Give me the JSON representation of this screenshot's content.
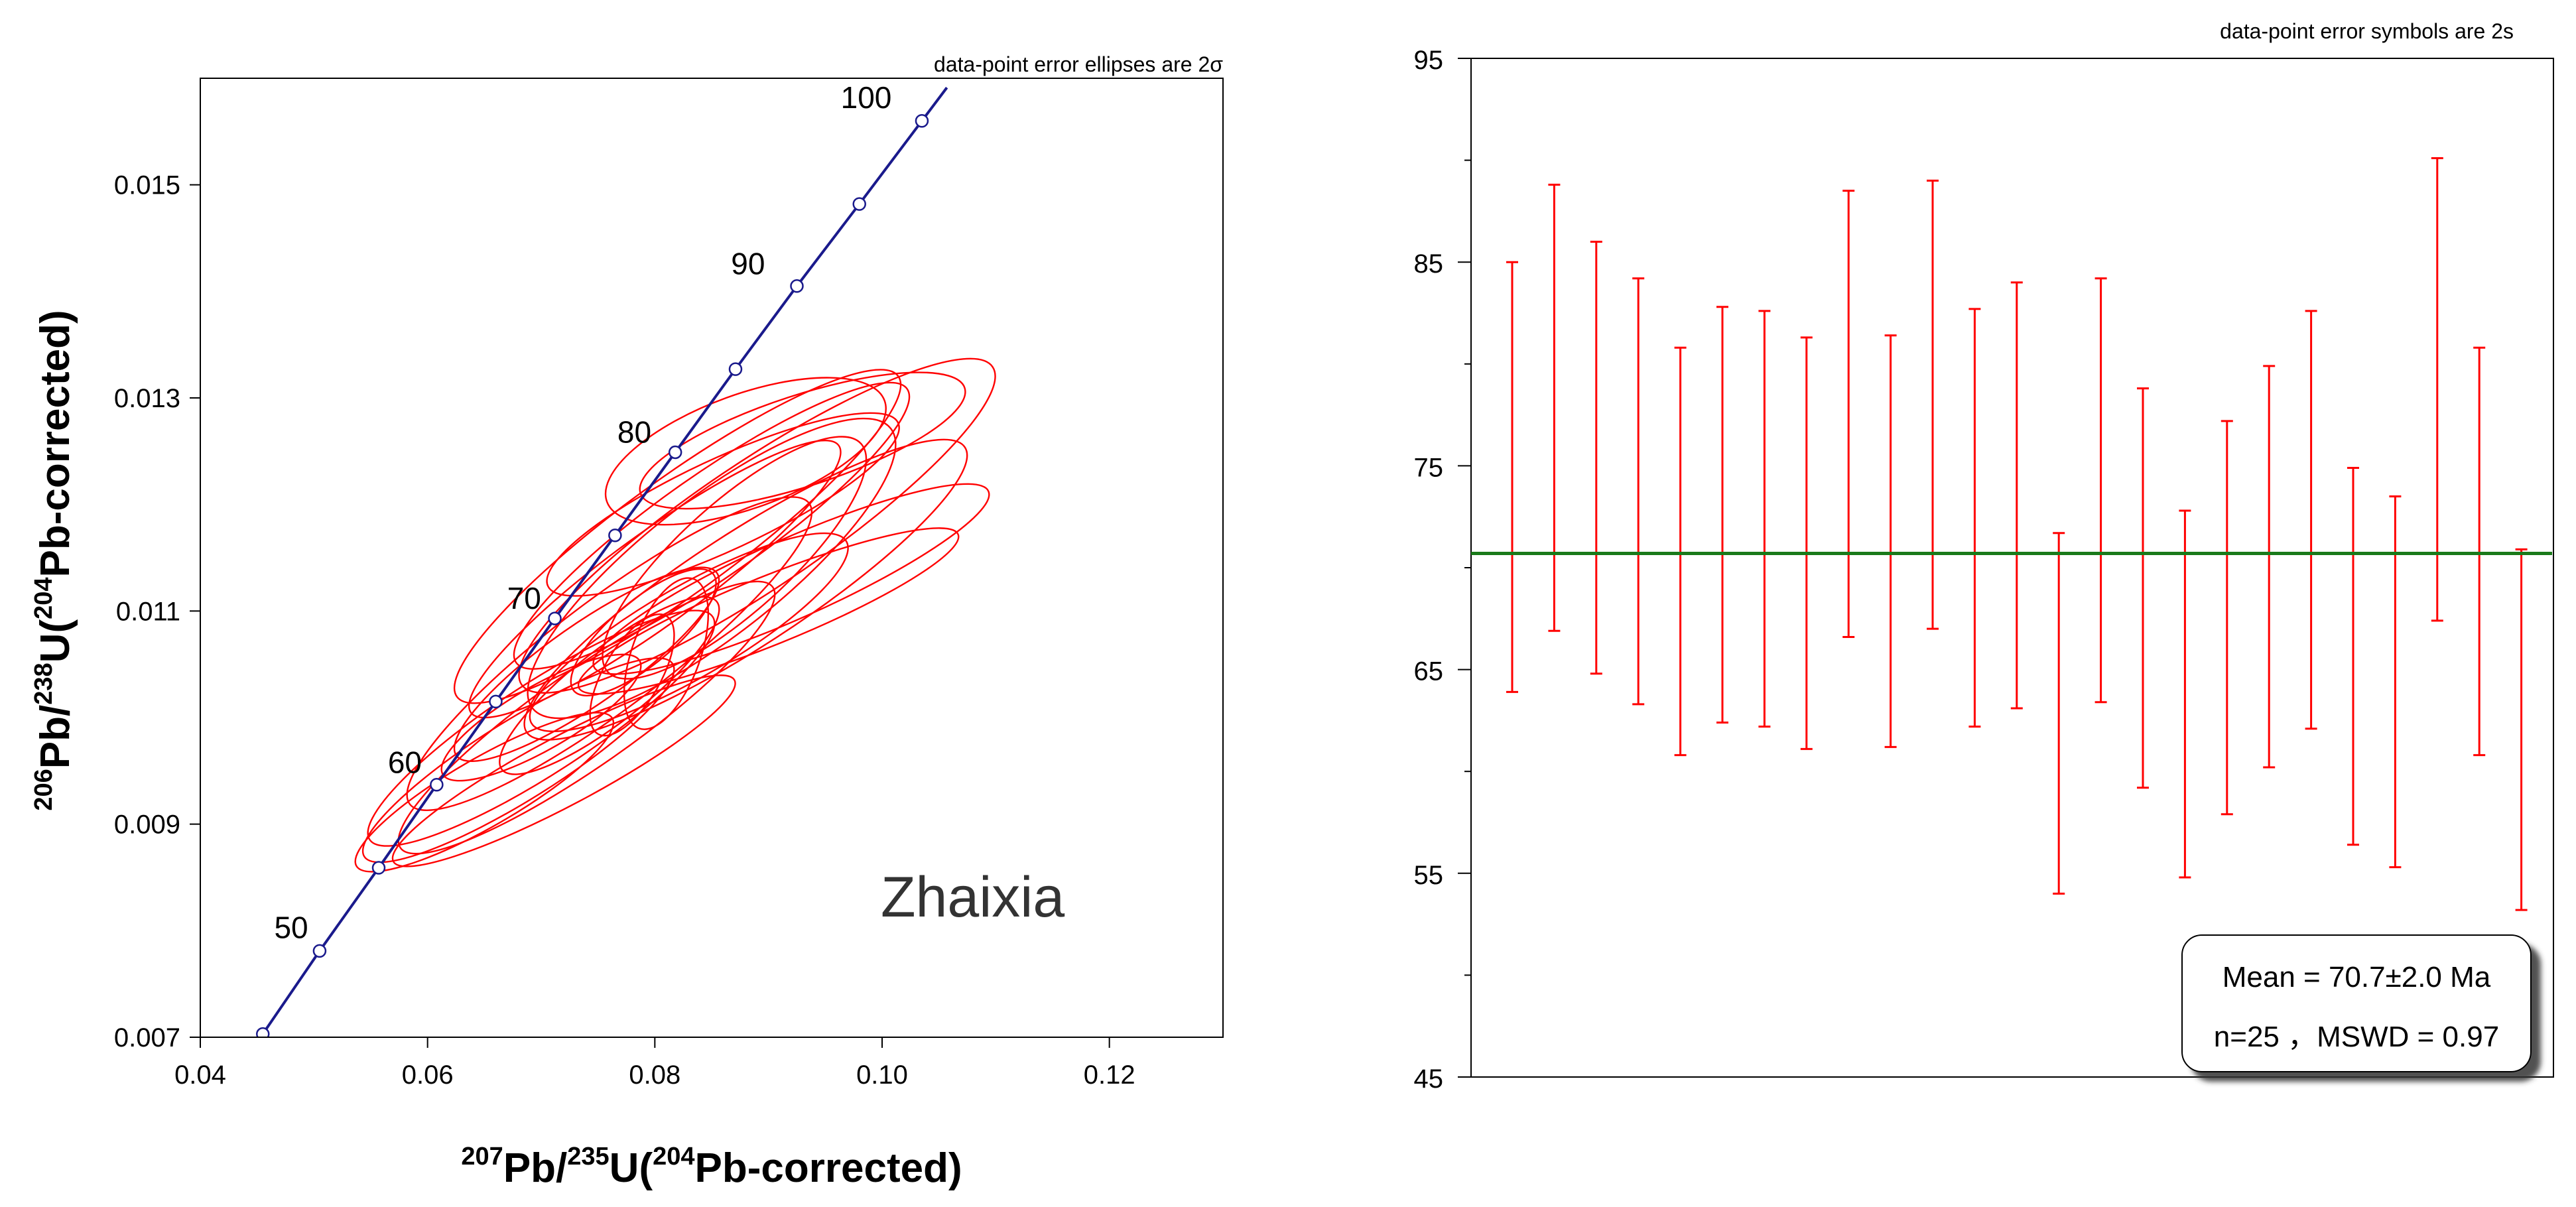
{
  "chart_data": [
    {
      "type": "scatter",
      "subtype": "concordia-error-ellipses",
      "note": "data-point error ellipses are 2σ",
      "xlabel": {
        "sup1": "207",
        "t1": "Pb/",
        "sup2": "235",
        "t2": "U(",
        "sup3": "204",
        "t3": "Pb-corrected)"
      },
      "ylabel": {
        "sup1": "206",
        "t1": "Pb/",
        "sup2": "238",
        "t2": "U(",
        "sup3": "204",
        "t3": "Pb-corrected)"
      },
      "xlim": [
        0.04,
        0.13
      ],
      "ylim": [
        0.007,
        0.016
      ],
      "xticks": [
        0.04,
        0.06,
        0.08,
        0.1,
        0.12
      ],
      "xtick_labels": [
        "0.04",
        "0.06",
        "0.08",
        "0.10",
        "0.12"
      ],
      "yticks": [
        0.007,
        0.009,
        0.011,
        0.013,
        0.015
      ],
      "ytick_labels": [
        "0.007",
        "0.009",
        "0.011",
        "0.013",
        "0.015"
      ],
      "sample_label": "Zhaixia",
      "concordia": {
        "color": "#1a1a8c",
        "ages": [
          45,
          50,
          55,
          60,
          65,
          70,
          75,
          80,
          85,
          90,
          95,
          100
        ],
        "x": [
          0.0455,
          0.0505,
          0.0557,
          0.0608,
          0.066,
          0.0712,
          0.0765,
          0.0818,
          0.0871,
          0.0925,
          0.098,
          0.1035
        ],
        "y": [
          0.00703,
          0.00781,
          0.00859,
          0.00937,
          0.01015,
          0.01093,
          0.01171,
          0.01249,
          0.01327,
          0.01405,
          0.01482,
          0.0156
        ],
        "age_labels": [
          {
            "text": "50",
            "x": 0.048,
            "y": 0.00793
          },
          {
            "text": "60",
            "x": 0.058,
            "y": 0.00948
          },
          {
            "text": "70",
            "x": 0.0685,
            "y": 0.01102
          },
          {
            "text": "80",
            "x": 0.0782,
            "y": 0.01258
          },
          {
            "text": "90",
            "x": 0.0882,
            "y": 0.01416
          },
          {
            "text": "100",
            "x": 0.0986,
            "y": 0.01572
          }
        ]
      },
      "ellipse_color": "#ff0000",
      "ellipses": [
        {
          "cx": 0.082,
          "cy": 0.0117,
          "a": 0.024,
          "b": 0.005,
          "angle": 36
        },
        {
          "cx": 0.089,
          "cy": 0.0118,
          "a": 0.025,
          "b": 0.0055,
          "angle": 34
        },
        {
          "cx": 0.088,
          "cy": 0.0112,
          "a": 0.023,
          "b": 0.005,
          "angle": 33
        },
        {
          "cx": 0.076,
          "cy": 0.0106,
          "a": 0.022,
          "b": 0.0048,
          "angle": 37
        },
        {
          "cx": 0.08,
          "cy": 0.0113,
          "a": 0.02,
          "b": 0.004,
          "angle": 36
        },
        {
          "cx": 0.085,
          "cy": 0.0118,
          "a": 0.021,
          "b": 0.0045,
          "angle": 35
        },
        {
          "cx": 0.074,
          "cy": 0.01,
          "a": 0.02,
          "b": 0.0042,
          "angle": 35
        },
        {
          "cx": 0.07,
          "cy": 0.0099,
          "a": 0.018,
          "b": 0.004,
          "angle": 33
        },
        {
          "cx": 0.068,
          "cy": 0.0096,
          "a": 0.016,
          "b": 0.0035,
          "angle": 32
        },
        {
          "cx": 0.072,
          "cy": 0.0095,
          "a": 0.017,
          "b": 0.003,
          "angle": 28
        },
        {
          "cx": 0.065,
          "cy": 0.0093,
          "a": 0.013,
          "b": 0.003,
          "angle": 30
        },
        {
          "cx": 0.083,
          "cy": 0.0108,
          "a": 0.016,
          "b": 0.004,
          "angle": 30
        },
        {
          "cx": 0.09,
          "cy": 0.011,
          "a": 0.018,
          "b": 0.003,
          "angle": 22
        },
        {
          "cx": 0.092,
          "cy": 0.0113,
          "a": 0.019,
          "b": 0.0035,
          "angle": 24
        },
        {
          "cx": 0.079,
          "cy": 0.0108,
          "a": 0.008,
          "b": 0.0028,
          "angle": 40
        },
        {
          "cx": 0.078,
          "cy": 0.0104,
          "a": 0.006,
          "b": 0.0025,
          "angle": 60
        },
        {
          "cx": 0.081,
          "cy": 0.0106,
          "a": 0.007,
          "b": 0.003,
          "angle": 70
        },
        {
          "cx": 0.076,
          "cy": 0.0103,
          "a": 0.012,
          "b": 0.0032,
          "angle": 38
        },
        {
          "cx": 0.086,
          "cy": 0.012,
          "a": 0.017,
          "b": 0.004,
          "angle": 25
        },
        {
          "cx": 0.093,
          "cy": 0.0126,
          "a": 0.015,
          "b": 0.004,
          "angle": 18
        },
        {
          "cx": 0.088,
          "cy": 0.0125,
          "a": 0.013,
          "b": 0.005,
          "angle": 20
        },
        {
          "cx": 0.087,
          "cy": 0.0115,
          "a": 0.015,
          "b": 0.0048,
          "angle": 42
        },
        {
          "cx": 0.074,
          "cy": 0.0105,
          "a": 0.014,
          "b": 0.0035,
          "angle": 35
        },
        {
          "cx": 0.07,
          "cy": 0.01,
          "a": 0.01,
          "b": 0.0028,
          "angle": 30
        },
        {
          "cx": 0.085,
          "cy": 0.0114,
          "a": 0.02,
          "b": 0.006,
          "angle": 38
        }
      ]
    },
    {
      "type": "errorbar",
      "note": "data-point error symbols are 2s",
      "ylim": [
        45,
        95
      ],
      "yticks": [
        45,
        55,
        65,
        75,
        85,
        95
      ],
      "ytick_labels": [
        "45",
        "55",
        "65",
        "75",
        "85",
        "95"
      ],
      "ymin_ticks": [
        50,
        60,
        70,
        80,
        90
      ],
      "bar_color": "#ff0000",
      "mean_color": "#1a7a1a",
      "mean": 70.7,
      "bars": [
        {
          "low": 63.9,
          "high": 85.0
        },
        {
          "low": 66.9,
          "high": 88.8
        },
        {
          "low": 64.8,
          "high": 86.0
        },
        {
          "low": 63.3,
          "high": 84.2
        },
        {
          "low": 60.8,
          "high": 80.8
        },
        {
          "low": 62.4,
          "high": 82.8
        },
        {
          "low": 62.2,
          "high": 82.6
        },
        {
          "low": 61.1,
          "high": 81.3
        },
        {
          "low": 66.6,
          "high": 88.5
        },
        {
          "low": 61.2,
          "high": 81.4
        },
        {
          "low": 67.0,
          "high": 89.0
        },
        {
          "low": 62.2,
          "high": 82.7
        },
        {
          "low": 63.1,
          "high": 84.0
        },
        {
          "low": 54.0,
          "high": 71.7
        },
        {
          "low": 63.4,
          "high": 84.2
        },
        {
          "low": 59.2,
          "high": 78.8
        },
        {
          "low": 54.8,
          "high": 72.8
        },
        {
          "low": 57.9,
          "high": 77.2
        },
        {
          "low": 60.2,
          "high": 79.9
        },
        {
          "low": 62.1,
          "high": 82.6
        },
        {
          "low": 56.4,
          "high": 74.9
        },
        {
          "low": 55.3,
          "high": 73.5
        },
        {
          "low": 67.4,
          "high": 90.1
        },
        {
          "low": 60.8,
          "high": 80.8
        },
        {
          "low": 53.2,
          "high": 70.9
        }
      ],
      "stats_box": {
        "line1": "Mean = 70.7±2.0 Ma",
        "line2": "n=25 ，MSWD = 0.97"
      }
    }
  ]
}
